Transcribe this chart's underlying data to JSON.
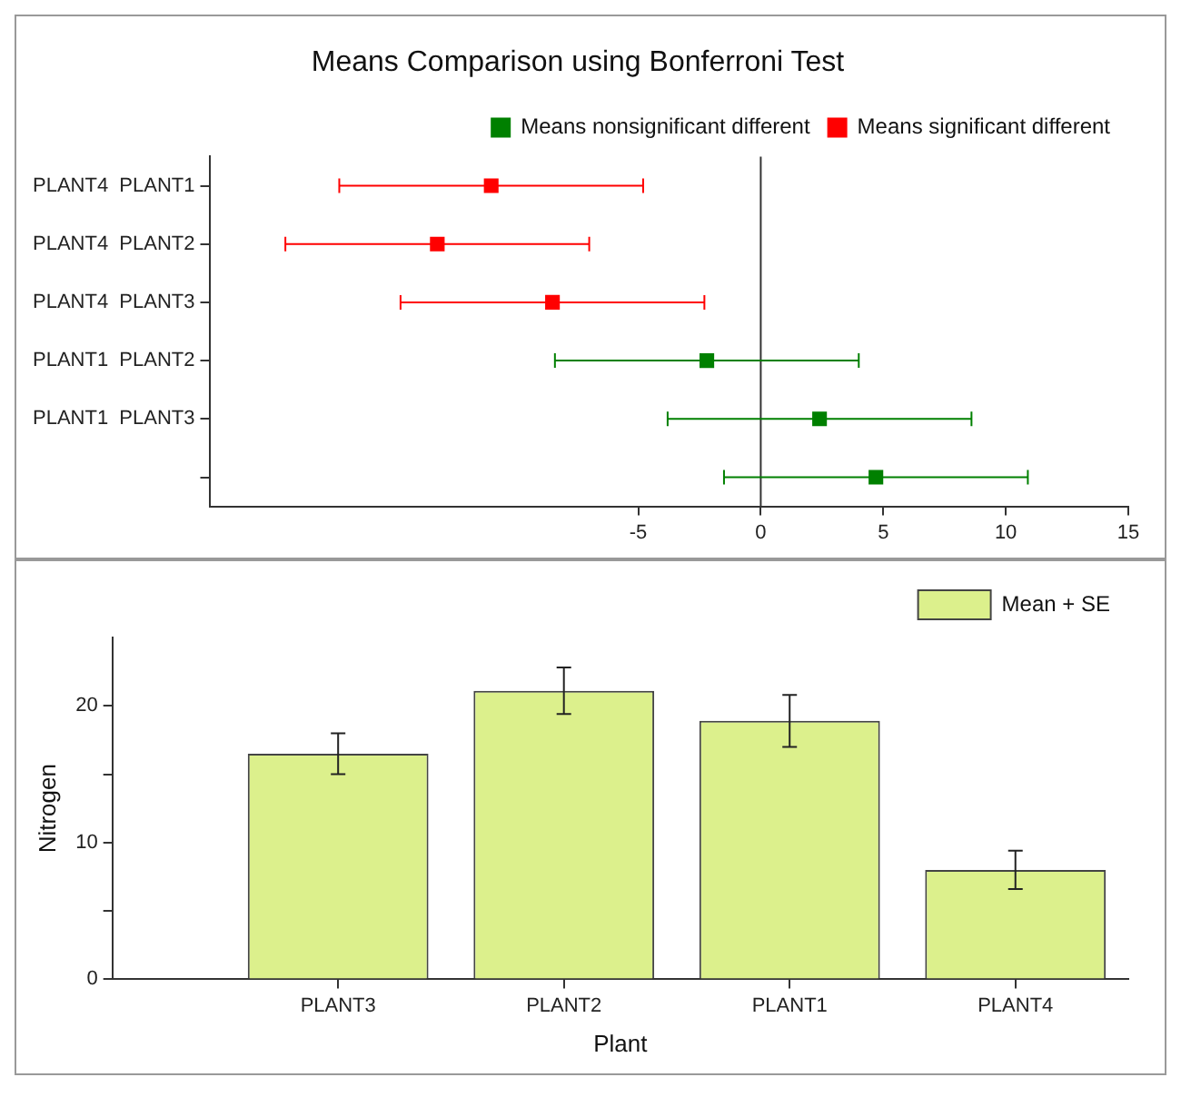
{
  "chart_data": [
    {
      "type": "scatter",
      "orientation": "horizontal",
      "title": "Means Comparison using Bonferroni Test",
      "categories": [
        "PLANT4  PLANT1",
        "PLANT4  PLANT2",
        "PLANT4  PLANT3",
        "PLANT1  PLANT2",
        "PLANT1  PLANT3",
        null
      ],
      "series": [
        {
          "name": "Means nonsignificant different",
          "color": "#008000",
          "values": [
            null,
            null,
            null,
            -2.2,
            2.4,
            4.7
          ],
          "errors": [
            null,
            null,
            null,
            6.2,
            6.2,
            6.2
          ]
        },
        {
          "name": "Means significant different",
          "color": "#ff0000",
          "values": [
            -11,
            -13.2,
            -8.5,
            null,
            null,
            null
          ],
          "errors": [
            6.2,
            6.2,
            6.2,
            null,
            null,
            null
          ]
        }
      ],
      "xlim": [
        -22.5,
        15
      ],
      "xticks": [
        -5,
        0,
        5,
        10,
        15
      ],
      "ref_lines": [
        {
          "axis": "x",
          "value": 0
        }
      ],
      "marker": "square",
      "legend": "top right",
      "grid": false
    },
    {
      "type": "bar",
      "categories": [
        "PLANT3",
        "PLANT2",
        "PLANT1",
        "PLANT4"
      ],
      "series": [
        {
          "name": "Mean + SE",
          "color": "#dcf08c",
          "values": [
            16.5,
            21.1,
            18.9,
            8.0
          ],
          "errors": [
            1.5,
            1.7,
            1.9,
            1.4
          ]
        }
      ],
      "xlabel": "Plant",
      "ylabel": "Nitrogen",
      "ylim": [
        0,
        25
      ],
      "yticks": [
        0,
        {
          "value": 5,
          "label": null
        },
        10,
        {
          "value": 15,
          "label": null
        },
        20
      ],
      "legend": "top right",
      "grid": false
    }
  ]
}
